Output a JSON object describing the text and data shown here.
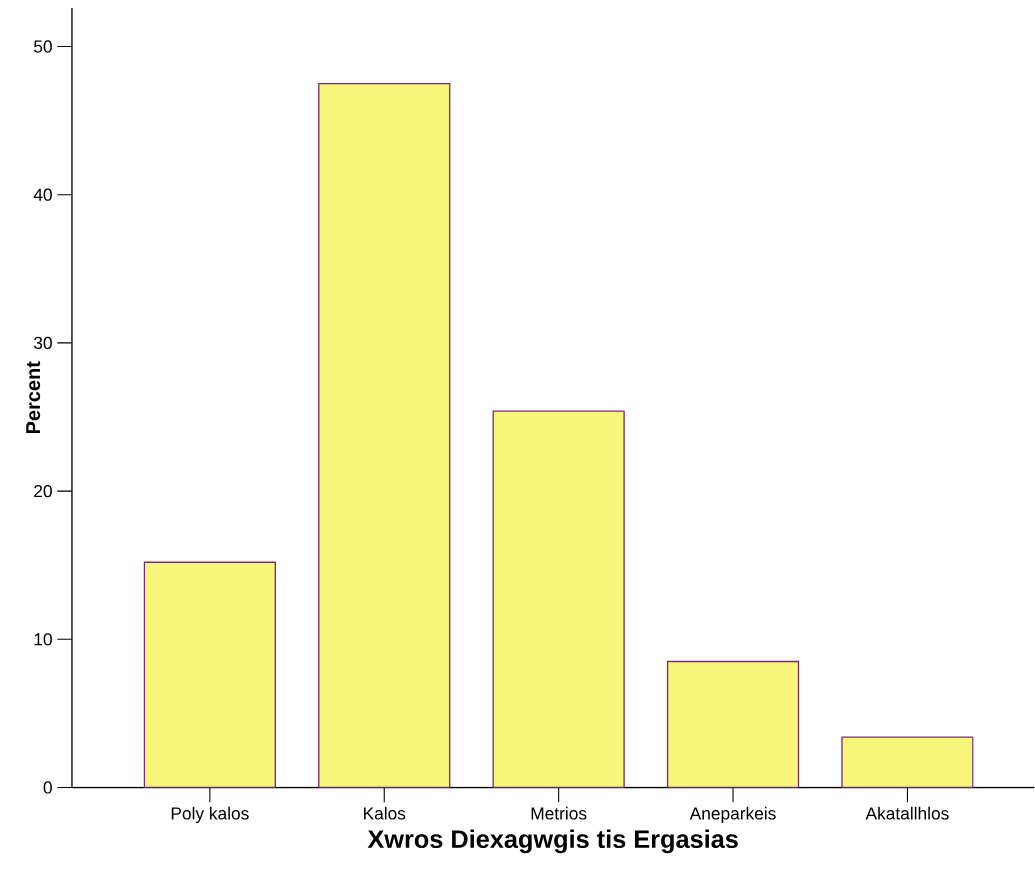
{
  "chart_data": {
    "type": "bar",
    "xlabel": "Xwros Diexagwgis tis Ergasias",
    "ylabel": "Percent",
    "categories": [
      "Poly kalos",
      "Kalos",
      "Metrios",
      "Aneparkeis",
      "Akatallhlos"
    ],
    "values": [
      15.2,
      47.5,
      25.4,
      8.5,
      3.4
    ],
    "color": "#f7f57a",
    "ylim": [
      0,
      52.6
    ],
    "yticks": [
      0,
      10,
      20,
      30,
      40,
      50
    ]
  }
}
